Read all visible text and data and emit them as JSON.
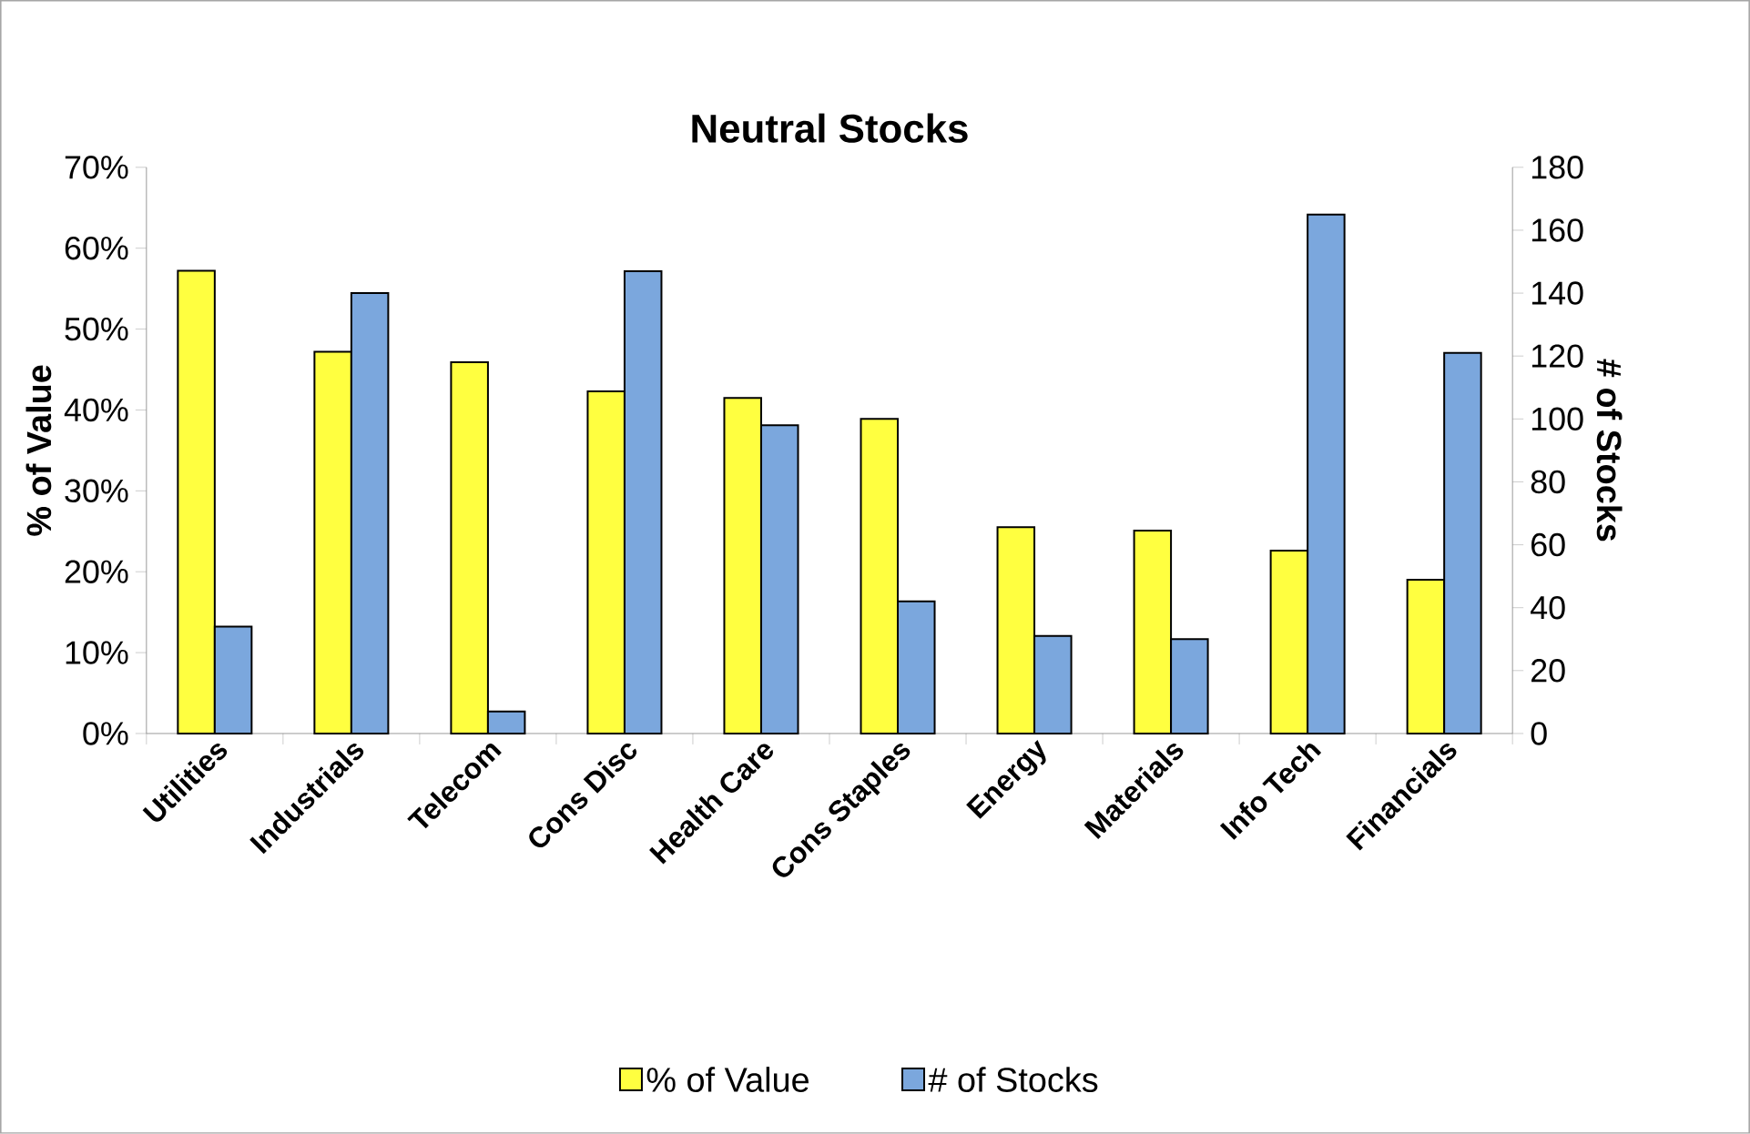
{
  "chart_data": {
    "type": "bar",
    "title": "Neutral Stocks",
    "ylabel": "% of Value",
    "y2label": "# of Stocks",
    "categories": [
      "Utilities",
      "Industrials",
      "Telecom",
      "Cons Disc",
      "Health Care",
      "Cons Staples",
      "Energy",
      "Materials",
      "Info Tech",
      "Financials"
    ],
    "series": [
      {
        "name": "% of Value",
        "color": "#ffff40",
        "values": [
          57.2,
          47.2,
          45.9,
          42.3,
          41.5,
          38.9,
          25.5,
          25.1,
          22.6,
          19.0
        ]
      },
      {
        "name": "# of Stocks",
        "color": "#7ba7dd",
        "axis": "y2",
        "values": [
          34,
          140,
          7,
          147,
          98,
          42,
          31,
          30,
          165,
          121
        ]
      }
    ],
    "ylim": [
      0,
      70
    ],
    "yticks": [
      {
        "value": 0,
        "label": "0%"
      },
      {
        "value": 10,
        "label": "10%"
      },
      {
        "value": 20,
        "label": "20%"
      },
      {
        "value": 30,
        "label": "30%"
      },
      {
        "value": 40,
        "label": "40%"
      },
      {
        "value": 50,
        "label": "50%"
      },
      {
        "value": 60,
        "label": "60%"
      },
      {
        "value": 70,
        "label": "70%"
      }
    ],
    "y2lim": [
      0,
      180
    ],
    "y2ticks": [
      0,
      20,
      40,
      60,
      80,
      100,
      120,
      140,
      160,
      180
    ],
    "grid": false,
    "legend": "bottom"
  }
}
